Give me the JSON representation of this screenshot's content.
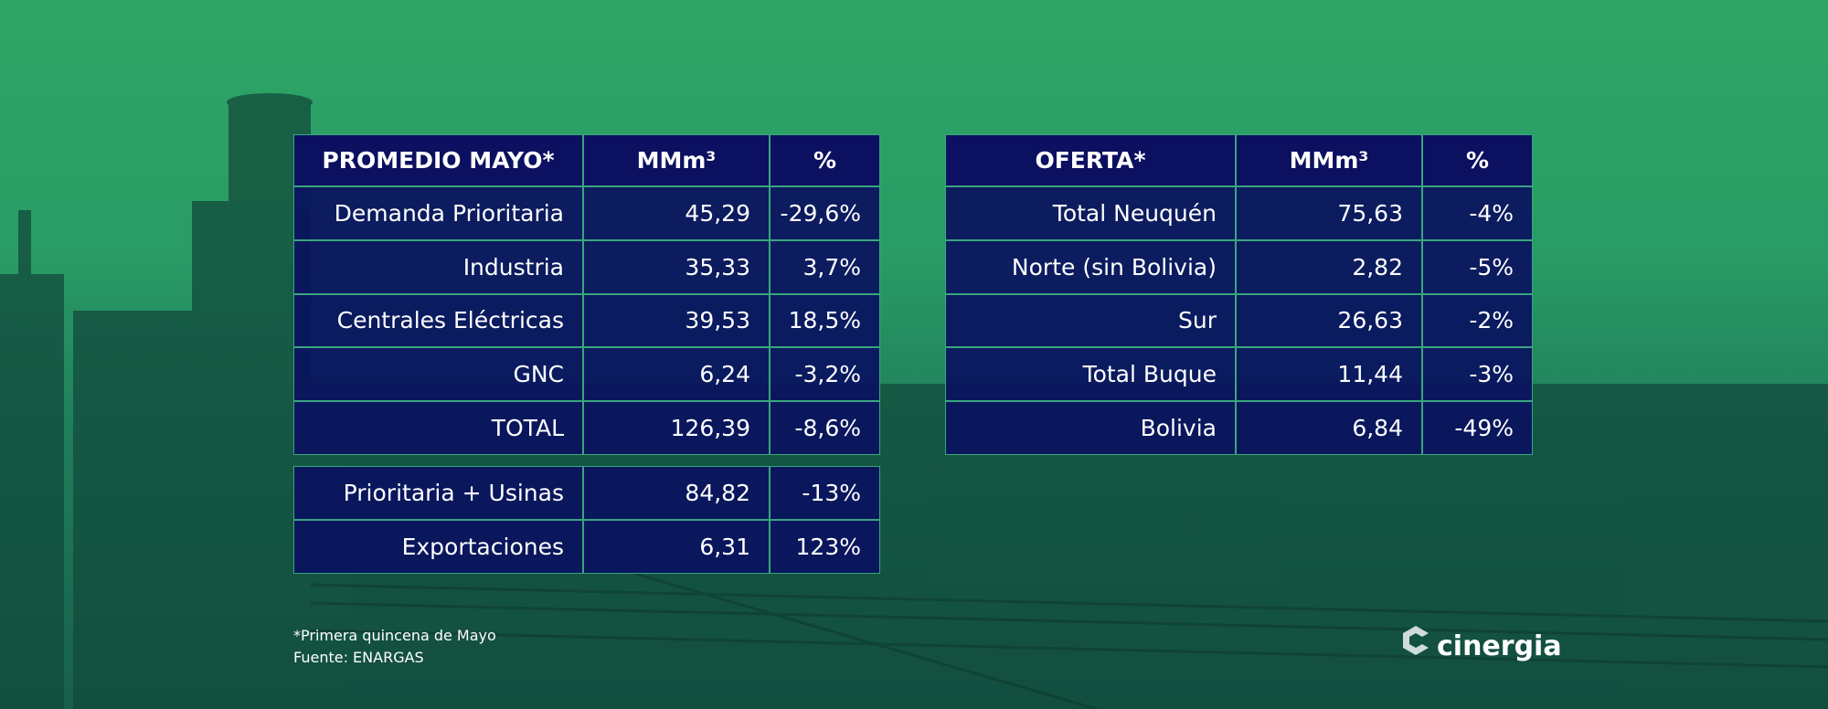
{
  "tables": [
    {
      "header": [
        "PROMEDIO MAYO*",
        "MMm³",
        "%"
      ],
      "rows": [
        [
          "Demanda Prioritaria",
          "45,29",
          "-29,6%"
        ],
        [
          "Industria",
          "35,33",
          "3,7%"
        ],
        [
          "Centrales Eléctricas",
          "39,53",
          "18,5%"
        ],
        [
          "GNC",
          "6,24",
          "-3,2%"
        ],
        [
          "TOTAL",
          "126,39",
          "-8,6%"
        ]
      ],
      "extra_rows": [
        [
          "Prioritaria + Usinas",
          "84,82",
          "-13%"
        ],
        [
          "Exportaciones",
          "6,31",
          "123%"
        ]
      ]
    },
    {
      "header": [
        "OFERTA*",
        "MMm³",
        "%"
      ],
      "rows": [
        [
          "Total Neuquén",
          "75,63",
          "-4%"
        ],
        [
          "Norte (sin Bolivia)",
          "2,82",
          "-5%"
        ],
        [
          "Sur",
          "26,63",
          "-2%"
        ],
        [
          "Total Buque",
          "11,44",
          "-3%"
        ],
        [
          "Bolivia",
          "6,84",
          "-49%"
        ]
      ]
    }
  ],
  "footnote": "*Primera quincena de Mayo",
  "source": "Fuente: ENARGAS",
  "logo": "cinergia"
}
